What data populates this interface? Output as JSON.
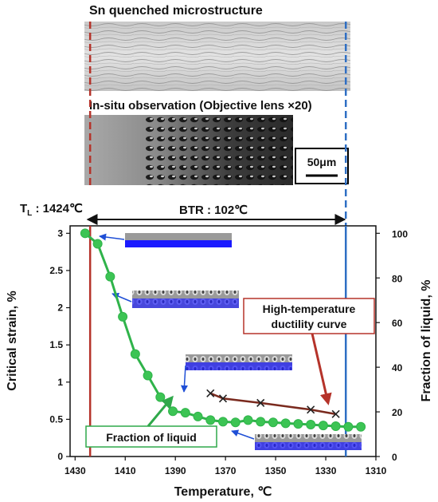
{
  "images": {
    "top_title": "Sn quenched microstructure",
    "insitu_title": "In-situ observation (Objective lens ×20)",
    "scale_bar": "50μm"
  },
  "annotations": {
    "tl_label": "T",
    "tl_sub": "L",
    "tl_value": " : 1424℃",
    "btr_label": "BTR : 102℃",
    "ductility_label_line1": "High-temperature",
    "ductility_label_line2": "ductility curve",
    "fraction_label": "Fraction of liquid"
  },
  "colors": {
    "liquidus_line": "#b5332a",
    "solidus_line": "#2f6fc4",
    "fraction_series": "#2fb34a",
    "fraction_marker": "#3cc454",
    "ductility_series": "#7a2a1e",
    "ductility_arrow": "#b5332a",
    "fraction_arrow": "#2fa84a",
    "thumb_arrow": "#1f4fd6",
    "thumb_blue": "#1a1aff"
  },
  "chart_data": {
    "type": "line",
    "xlabel": "Temperature, ℃",
    "ylabel_left": "Critical strain, %",
    "ylabel_right": "Fraction of liquid, %",
    "xlim": [
      1432,
      1310
    ],
    "ylim_left": [
      0,
      3.1
    ],
    "ylim_right": [
      0,
      103.33
    ],
    "x_ticks": [
      "1430",
      "1410",
      "1390",
      "1370",
      "1350",
      "1330",
      "1310"
    ],
    "x_tick_values": [
      1430,
      1410,
      1390,
      1370,
      1350,
      1330,
      1310
    ],
    "y_left_ticks": [
      "0",
      "0.5",
      "1",
      "1.5",
      "2",
      "2.5",
      "3"
    ],
    "y_left_tick_values": [
      0,
      0.5,
      1,
      1.5,
      2,
      2.5,
      3
    ],
    "y_right_ticks": [
      "0",
      "20",
      "40",
      "60",
      "80",
      "100"
    ],
    "y_right_tick_values": [
      0,
      20,
      40,
      60,
      80,
      100
    ],
    "liquidus_temperature": 1424,
    "solidus_temperature": 1322,
    "series": [
      {
        "axis": "right",
        "marker": "circle",
        "x": [
          1426,
          1421,
          1416,
          1411,
          1406,
          1401,
          1396,
          1391,
          1386,
          1381,
          1376,
          1371,
          1366,
          1361,
          1356,
          1351,
          1346,
          1341,
          1336,
          1331,
          1326,
          1321,
          1316
        ],
        "values": [
          100,
          95.3,
          80.6,
          62.6,
          45.9,
          36.3,
          26.6,
          20.3,
          19.6,
          17.9,
          16.3,
          15.6,
          15.3,
          16.3,
          15.6,
          15.3,
          14.9,
          14.6,
          14.3,
          13.9,
          13.6,
          13.3,
          13.3
        ]
      },
      {
        "axis": "left",
        "marker": "x",
        "x": [
          1376,
          1371,
          1356,
          1336,
          1326
        ],
        "values": [
          0.85,
          0.78,
          0.72,
          0.63,
          0.57
        ]
      }
    ]
  }
}
